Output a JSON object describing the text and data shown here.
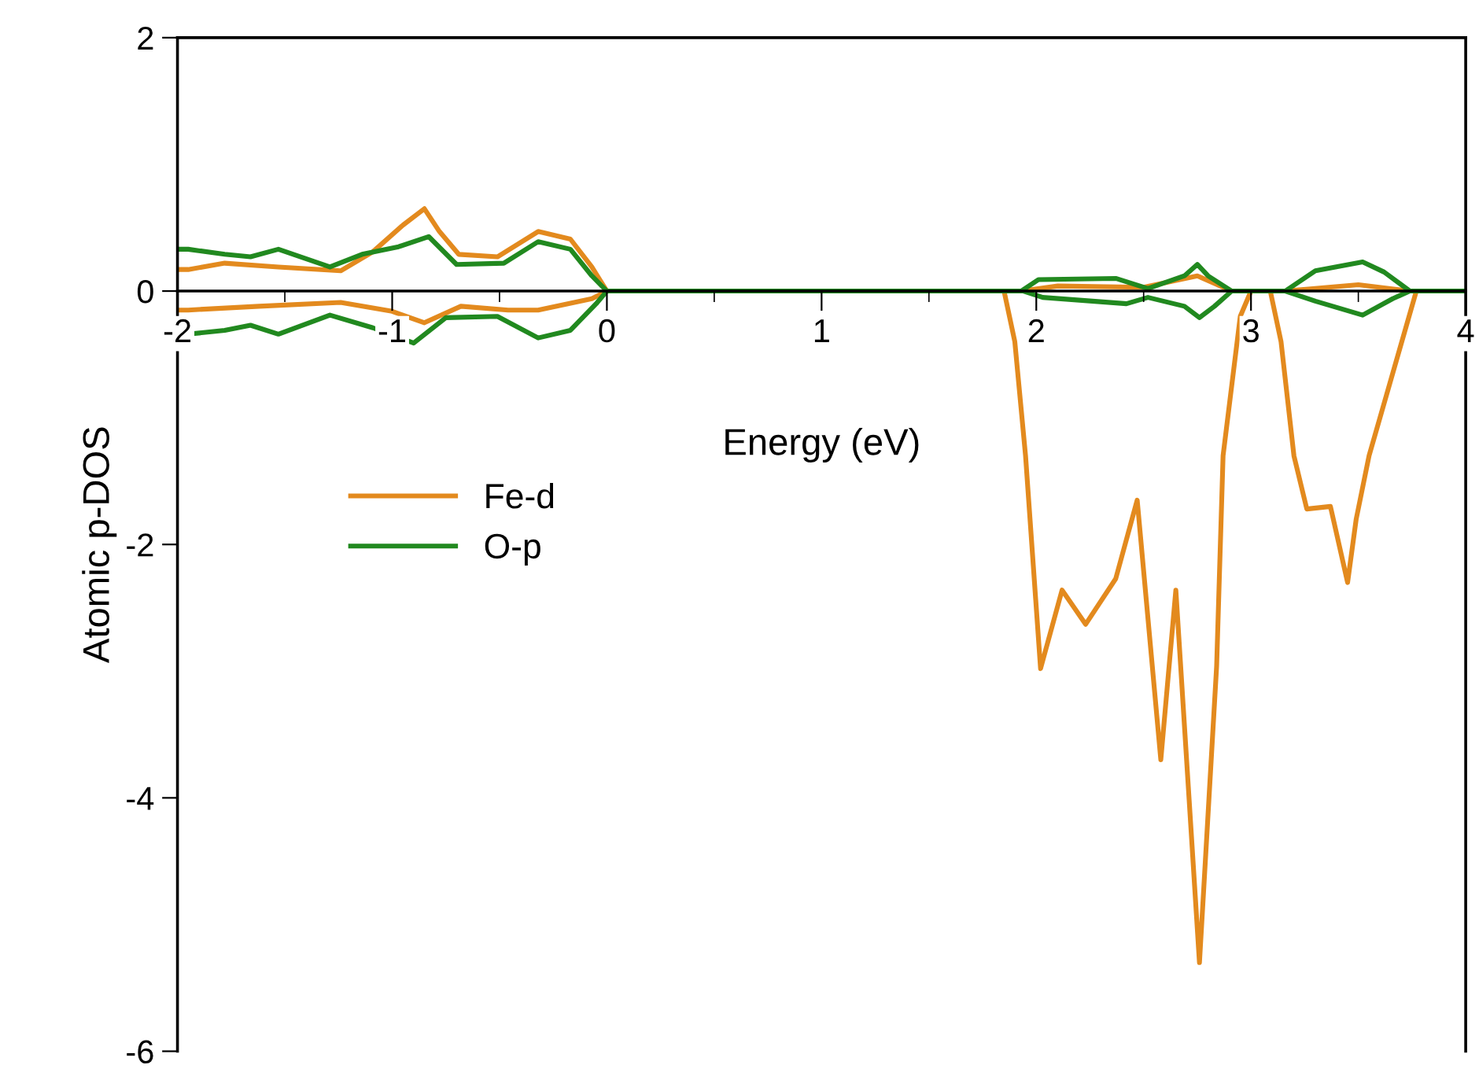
{
  "chart_data": {
    "type": "line",
    "xlabel": "Energy (eV)",
    "ylabel": "Atomic p-DOS",
    "xlim": [
      -2,
      4
    ],
    "ylim": [
      -6,
      2
    ],
    "xticks": [
      {
        "value": -2,
        "label": "-2"
      },
      {
        "value": -1,
        "label": "-1"
      },
      0,
      1,
      2,
      3,
      4
    ],
    "yticks": [
      {
        "value": -6,
        "label": "-6"
      },
      {
        "value": -4,
        "label": "-4"
      },
      {
        "value": -2,
        "label": "-2"
      },
      0,
      2
    ],
    "grid": false,
    "legend": "left",
    "marker": "none",
    "line_style": "solid",
    "series": [
      {
        "name": "Fe-d",
        "color": "#e38a1e",
        "x": [
          -2,
          -1.95,
          -1.78,
          -1.53,
          -1.24,
          -1.09,
          -0.95,
          -0.85,
          -0.78,
          -0.69,
          -0.51,
          -0.32,
          -0.17,
          -0.07,
          0,
          1,
          1.93,
          2.1,
          2.5,
          2.75,
          2.91,
          3.16,
          3.5,
          3.74,
          4
        ],
        "values": [
          0.17,
          0.17,
          0.22,
          0.19,
          0.16,
          0.31,
          0.52,
          0.65,
          0.47,
          0.29,
          0.27,
          0.47,
          0.41,
          0.19,
          0,
          0,
          0,
          0.04,
          0.03,
          0.12,
          0,
          0,
          0.05,
          0,
          0
        ]
      },
      {
        "color": "#e38a1e",
        "x": [
          -2,
          -1.95,
          -1.62,
          -1.24,
          -1.0,
          -0.85,
          -0.68,
          -0.46,
          -0.32,
          -0.07,
          0,
          1,
          1.85,
          1.9,
          1.95,
          2.02,
          2.12,
          2.23,
          2.37,
          2.47,
          2.58,
          2.65,
          2.76,
          2.84,
          2.87,
          2.95,
          3.0,
          3.09,
          3.14,
          3.2,
          3.26,
          3.37,
          3.45,
          3.49,
          3.55,
          3.77,
          4
        ],
        "values": [
          -0.15,
          -0.15,
          -0.12,
          -0.09,
          -0.16,
          -0.25,
          -0.12,
          -0.15,
          -0.15,
          -0.06,
          0,
          0,
          0,
          -0.4,
          -1.3,
          -2.98,
          -2.36,
          -2.63,
          -2.27,
          -1.65,
          -3.7,
          -2.36,
          -5.3,
          -2.96,
          -1.3,
          -0.2,
          0,
          0,
          -0.4,
          -1.3,
          -1.72,
          -1.7,
          -2.3,
          -1.8,
          -1.3,
          0,
          0
        ]
      },
      {
        "name": "O-p",
        "color": "#21891f",
        "x": [
          -2,
          -1.95,
          -1.78,
          -1.66,
          -1.53,
          -1.29,
          -1.14,
          -0.97,
          -0.83,
          -0.7,
          -0.48,
          -0.32,
          -0.17,
          -0.07,
          0,
          1,
          1.93,
          2.01,
          2.37,
          2.52,
          2.69,
          2.75,
          2.8,
          2.91,
          3.16,
          3.3,
          3.52,
          3.62,
          3.74,
          4
        ],
        "values": [
          0.33,
          0.33,
          0.29,
          0.27,
          0.33,
          0.19,
          0.29,
          0.35,
          0.43,
          0.21,
          0.22,
          0.39,
          0.33,
          0.12,
          0,
          0,
          0,
          0.09,
          0.1,
          0.02,
          0.12,
          0.21,
          0.12,
          0,
          0,
          0.16,
          0.23,
          0.15,
          0,
          0
        ]
      },
      {
        "color": "#21891f",
        "x": [
          -2,
          -1.95,
          -1.78,
          -1.66,
          -1.53,
          -1.29,
          -1.09,
          -0.9,
          -0.75,
          -0.51,
          -0.32,
          -0.17,
          -0.05,
          0,
          1,
          1.94,
          2.03,
          2.42,
          2.52,
          2.69,
          2.76,
          2.83,
          2.91,
          3.16,
          3.3,
          3.52,
          3.66,
          3.74,
          4
        ],
        "values": [
          -0.34,
          -0.34,
          -0.31,
          -0.27,
          -0.34,
          -0.19,
          -0.29,
          -0.41,
          -0.21,
          -0.2,
          -0.37,
          -0.31,
          -0.1,
          0,
          0,
          0,
          -0.05,
          -0.1,
          -0.05,
          -0.12,
          -0.21,
          -0.12,
          0,
          0,
          -0.08,
          -0.19,
          -0.06,
          0,
          0
        ]
      }
    ]
  }
}
